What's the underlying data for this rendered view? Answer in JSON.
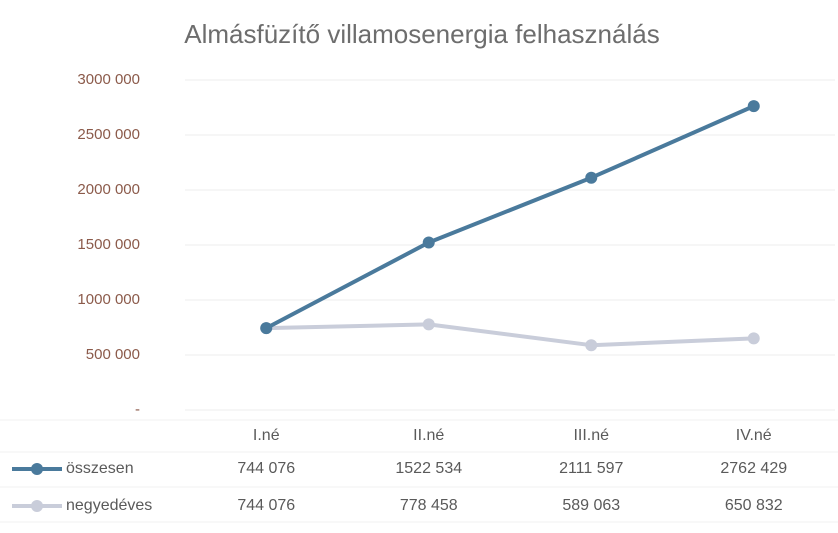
{
  "chart_data": {
    "type": "line",
    "title": "Almásfüzítő villamosenergia felhasználás",
    "categories": [
      "I.né",
      "II.né",
      "III.né",
      "IV.né"
    ],
    "series": [
      {
        "name": "összesen",
        "color": "#4a7a9c",
        "values": [
          744076,
          1522534,
          2111597,
          2762429
        ],
        "value_labels": [
          "744 076",
          "1522 534",
          "2111 597",
          "2762 429"
        ]
      },
      {
        "name": "negyedéves",
        "color": "#c9cdda",
        "values": [
          744076,
          778458,
          589063,
          650832
        ],
        "value_labels": [
          "744 076",
          "778 458",
          "589 063",
          "650 832"
        ]
      }
    ],
    "ylim": [
      0,
      3000000
    ],
    "yticks": [
      {
        "value": 0,
        "label": "-"
      },
      {
        "value": 500000,
        "label": "500 000"
      },
      {
        "value": 1000000,
        "label": "1000 000"
      },
      {
        "value": 1500000,
        "label": "1500 000"
      },
      {
        "value": 2000000,
        "label": "2000 000"
      },
      {
        "value": 2500000,
        "label": "2500 000"
      },
      {
        "value": 3000000,
        "label": "3000 000"
      }
    ],
    "grid": true
  }
}
